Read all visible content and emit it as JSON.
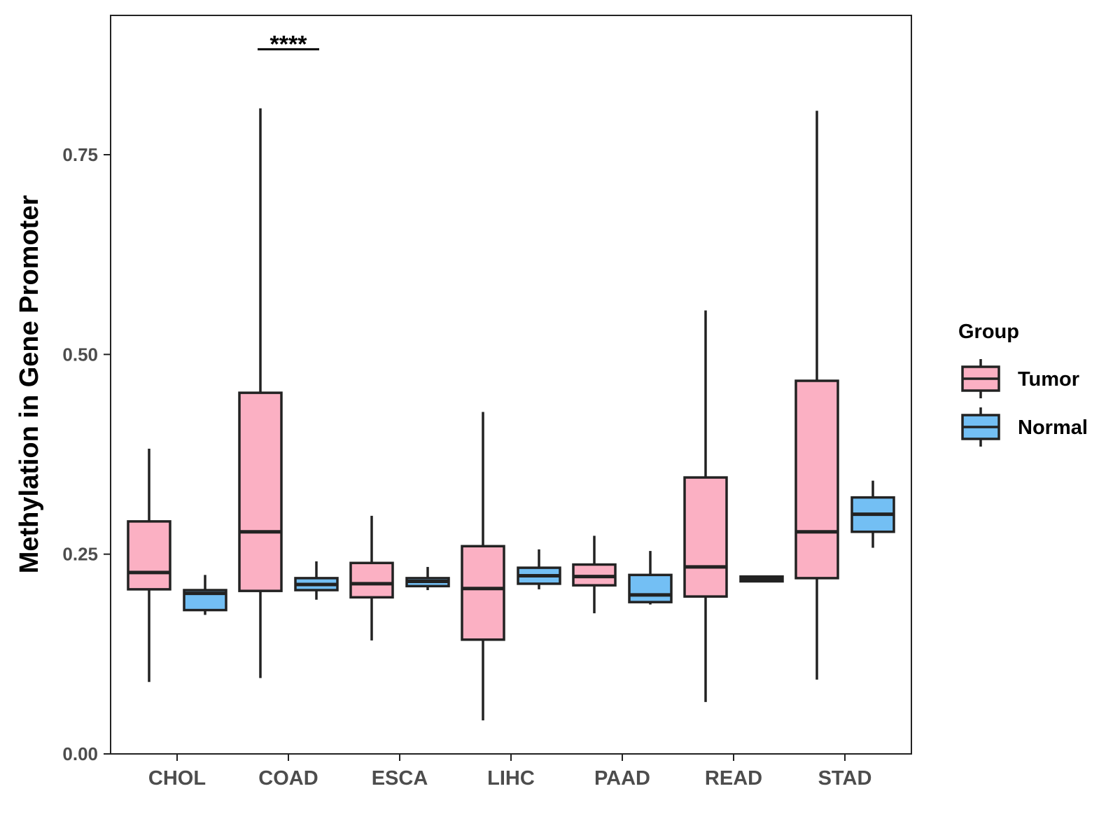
{
  "chart_data": {
    "type": "box",
    "title": "",
    "xlabel": "",
    "ylabel": "Methylation in Gene Promoter",
    "ylim": [
      0,
      0.925
    ],
    "yticks": [
      0.0,
      0.25,
      0.5,
      0.75
    ],
    "ytick_labels": [
      "0.00",
      "0.25",
      "0.50",
      "0.75"
    ],
    "grid": false,
    "categories": [
      "CHOL",
      "COAD",
      "ESCA",
      "LIHC",
      "PAAD",
      "READ",
      "STAD"
    ],
    "legend": {
      "title": "Group",
      "position": "right",
      "entries": [
        {
          "name": "Tumor",
          "color": "#fbb0c3"
        },
        {
          "name": "Normal",
          "color": "#73bff4"
        }
      ]
    },
    "series": [
      {
        "name": "Tumor",
        "color": "#fbb0c3",
        "boxes": [
          {
            "min": 0.09,
            "q1": 0.206,
            "median": 0.227,
            "q3": 0.291,
            "max": 0.382
          },
          {
            "min": 0.095,
            "q1": 0.204,
            "median": 0.278,
            "q3": 0.452,
            "max": 0.808
          },
          {
            "min": 0.142,
            "q1": 0.196,
            "median": 0.213,
            "q3": 0.239,
            "max": 0.298
          },
          {
            "min": 0.042,
            "q1": 0.143,
            "median": 0.207,
            "q3": 0.26,
            "max": 0.428
          },
          {
            "min": 0.176,
            "q1": 0.211,
            "median": 0.222,
            "q3": 0.237,
            "max": 0.273
          },
          {
            "min": 0.065,
            "q1": 0.197,
            "median": 0.234,
            "q3": 0.346,
            "max": 0.555
          },
          {
            "min": 0.093,
            "q1": 0.22,
            "median": 0.278,
            "q3": 0.467,
            "max": 0.805
          }
        ]
      },
      {
        "name": "Normal",
        "color": "#73bff4",
        "boxes": [
          {
            "min": 0.174,
            "q1": 0.18,
            "median": 0.201,
            "q3": 0.205,
            "max": 0.224
          },
          {
            "min": 0.193,
            "q1": 0.205,
            "median": 0.212,
            "q3": 0.22,
            "max": 0.241
          },
          {
            "min": 0.205,
            "q1": 0.21,
            "median": 0.216,
            "q3": 0.22,
            "max": 0.234
          },
          {
            "min": 0.206,
            "q1": 0.213,
            "median": 0.223,
            "q3": 0.233,
            "max": 0.256
          },
          {
            "min": 0.187,
            "q1": 0.19,
            "median": 0.199,
            "q3": 0.224,
            "max": 0.254
          },
          {
            "min": 0.216,
            "q1": 0.216,
            "median": 0.219,
            "q3": 0.222,
            "max": 0.223
          },
          {
            "min": 0.258,
            "q1": 0.278,
            "median": 0.3,
            "q3": 0.321,
            "max": 0.342
          }
        ]
      }
    ],
    "annotations": [
      {
        "text": "****",
        "category": "COAD",
        "y": 0.882
      }
    ]
  }
}
